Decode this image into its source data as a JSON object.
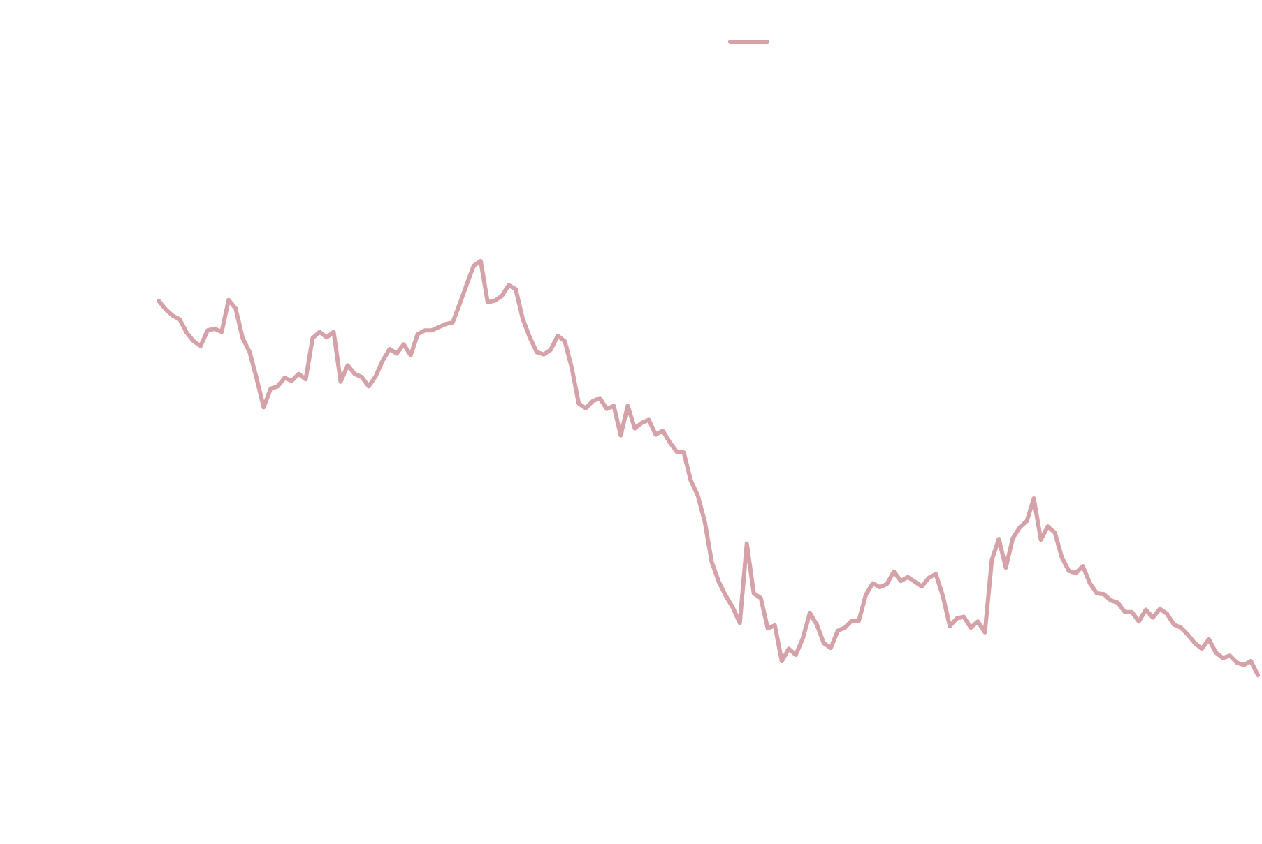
{
  "chart_data": {
    "type": "line",
    "title": "",
    "xlabel": "",
    "ylabel": "",
    "grid": false,
    "legend": {
      "placement": "top-center",
      "entries": [
        ""
      ]
    },
    "xlim": [
      0,
      150
    ],
    "ylim": [
      0,
      100
    ],
    "series": [
      {
        "name": "",
        "color": "#d4a2a8",
        "values": [
          65.4,
          64.3,
          63.5,
          63.0,
          61.3,
          60.2,
          59.6,
          61.6,
          61.8,
          61.4,
          65.5,
          64.4,
          60.6,
          58.8,
          55.4,
          51.7,
          54.1,
          54.4,
          55.5,
          55.1,
          56.0,
          55.3,
          60.6,
          61.4,
          60.7,
          61.4,
          55.0,
          57.1,
          56.0,
          55.6,
          54.4,
          55.7,
          57.7,
          59.2,
          58.6,
          59.8,
          58.4,
          61.1,
          61.6,
          61.6,
          62.0,
          62.4,
          62.6,
          65.0,
          67.5,
          69.9,
          70.5,
          65.2,
          65.4,
          66.0,
          67.4,
          66.9,
          63.1,
          60.7,
          58.8,
          58.5,
          59.1,
          60.9,
          60.2,
          56.8,
          52.2,
          51.6,
          52.5,
          52.9,
          51.5,
          51.9,
          48.1,
          51.9,
          49.0,
          49.7,
          50.1,
          48.2,
          48.7,
          47.2,
          46.0,
          45.9,
          42.3,
          40.4,
          37.0,
          31.8,
          29.3,
          27.5,
          26.0,
          24.0,
          34.2,
          27.8,
          27.2,
          23.3,
          23.7,
          19.1,
          20.7,
          19.9,
          22.0,
          25.3,
          23.8,
          21.4,
          20.8,
          23.0,
          23.4,
          24.3,
          24.3,
          27.6,
          29.1,
          28.6,
          29.0,
          30.6,
          29.4,
          29.9,
          29.3,
          28.7,
          29.8,
          30.3,
          27.5,
          23.6,
          24.6,
          24.8,
          23.4,
          24.2,
          22.8,
          32.1,
          34.8,
          31.1,
          34.9,
          36.3,
          37.1,
          40.0,
          34.7,
          36.4,
          35.6,
          32.4,
          30.7,
          30.4,
          31.3,
          29.1,
          27.8,
          27.7,
          26.9,
          26.6,
          25.4,
          25.4,
          24.2,
          25.7,
          24.7,
          25.8,
          25.2,
          23.8,
          23.4,
          22.5,
          21.4,
          20.7,
          21.9,
          20.2,
          19.5,
          19.8,
          18.9,
          18.6,
          19.1,
          17.3
        ]
      }
    ]
  }
}
